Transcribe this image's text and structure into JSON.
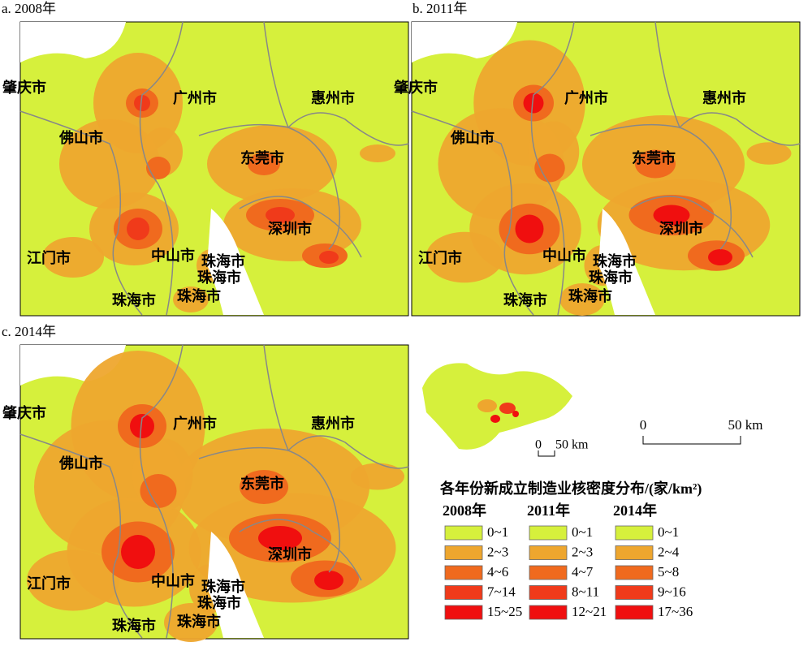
{
  "panels": [
    {
      "label": "a. 2008年",
      "cities": [
        "肇庆市",
        "广州市",
        "惠州市",
        "佛山市",
        "东莞市",
        "深圳市",
        "江门市",
        "中山市",
        "珠海市",
        "珠海市",
        "珠海市",
        "珠海市"
      ]
    },
    {
      "label": "b. 2011年",
      "cities": [
        "肇庆市",
        "广州市",
        "惠州市",
        "佛山市",
        "东莞市",
        "深圳市",
        "江门市",
        "中山市",
        "珠海市",
        "珠海市",
        "珠海市",
        "珠海市"
      ]
    },
    {
      "label": "c. 2014年",
      "cities": [
        "肇庆市",
        "广州市",
        "惠州市",
        "佛山市",
        "东莞市",
        "深圳市",
        "江门市",
        "中山市",
        "珠海市",
        "珠海市",
        "珠海市",
        "珠海市"
      ]
    }
  ],
  "inset_scale": {
    "zero": "0",
    "label": "50 km"
  },
  "scale": {
    "zero": "0",
    "label": "50 km"
  },
  "legend": {
    "title": "各年份新成立制造业核密度分布/(家/km²)",
    "colors": [
      "#d6f03c",
      "#eea62e",
      "#f06a1e",
      "#f03a1a",
      "#f00f0f"
    ],
    "columns": [
      {
        "year": "2008年",
        "classes": [
          "0~1",
          "2~3",
          "4~6",
          "7~14",
          "15~25"
        ]
      },
      {
        "year": "2011年",
        "classes": [
          "0~1",
          "2~3",
          "4~7",
          "8~11",
          "12~21"
        ]
      },
      {
        "year": "2014年",
        "classes": [
          "0~1",
          "2~4",
          "5~8",
          "9~16",
          "17~36"
        ]
      }
    ]
  }
}
